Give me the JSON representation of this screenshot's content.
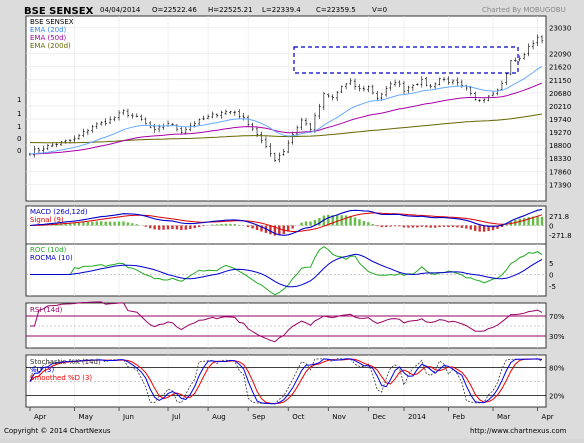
{
  "header": {
    "symbol": "BSE SENSEX",
    "date": "04/04/2014",
    "open": "O=22522.46",
    "high": "H=22525.21",
    "low": "L=22339.4",
    "close": "C=22359.5",
    "volume": "V=0",
    "credit": "Charted By MOBUGOBU"
  },
  "footer": {
    "copyright": "Copyright © 2014 ChartNexus",
    "url": "http://www.chartnexus.com"
  },
  "colors": {
    "price": "#000000",
    "ema20": "#66aaff",
    "ema50": "#aa00aa",
    "ema200": "#666600",
    "macd": "#0000cc",
    "signal": "#dd0000",
    "hist_up": "#66bb44",
    "hist_down": "#cc3333",
    "roc": "#22aa22",
    "rocma": "#0000cc",
    "rsi": "#990066",
    "stoch_k": "#333333",
    "stoch_d": "#0000ee",
    "smoothed_d": "#ee0000",
    "box": "#0000cc"
  },
  "chart_data": [
    {
      "type": "candlestick",
      "panel": "price",
      "legend": [
        "BSE SENSEX",
        "EMA (20d)",
        "EMA (50d)",
        "EMA (200d)"
      ],
      "y_ticks": [
        "23030",
        "22090",
        "21620",
        "21150",
        "20680",
        "20210",
        "19740",
        "19270",
        "18800",
        "18330",
        "17860",
        "17390"
      ],
      "y_range": [
        16900,
        23300
      ],
      "left_labels": [
        "1",
        "1",
        "1",
        "0",
        "0"
      ],
      "x_labels": [
        "Apr",
        "May",
        "Jun",
        "Jul",
        "Aug",
        "Sep",
        "Oct",
        "Nov",
        "Dec",
        "2014",
        "Feb",
        "Mar",
        "Apr"
      ],
      "close_anchors": [
        [
          0,
          18550
        ],
        [
          5,
          18800
        ],
        [
          10,
          19000
        ],
        [
          14,
          19480
        ],
        [
          18,
          19700
        ],
        [
          21,
          20000
        ],
        [
          25,
          19700
        ],
        [
          28,
          19300
        ],
        [
          31,
          19600
        ],
        [
          34,
          19300
        ],
        [
          37,
          19600
        ],
        [
          40,
          19800
        ],
        [
          43,
          20000
        ],
        [
          46,
          20000
        ],
        [
          49,
          19600
        ],
        [
          51,
          19200
        ],
        [
          53,
          18700
        ],
        [
          55,
          18300
        ],
        [
          57,
          18600
        ],
        [
          59,
          19200
        ],
        [
          61,
          19700
        ],
        [
          63,
          19400
        ],
        [
          64,
          19800
        ],
        [
          66,
          20600
        ],
        [
          68,
          20500
        ],
        [
          70,
          20900
        ],
        [
          72,
          21050
        ],
        [
          74,
          20800
        ],
        [
          76,
          20900
        ],
        [
          78,
          20500
        ],
        [
          80,
          20800
        ],
        [
          82,
          21100
        ],
        [
          84,
          20800
        ],
        [
          86,
          21000
        ],
        [
          88,
          21100
        ],
        [
          90,
          20900
        ],
        [
          92,
          21200
        ],
        [
          94,
          21100
        ],
        [
          96,
          21000
        ],
        [
          98,
          20800
        ],
        [
          100,
          20400
        ],
        [
          102,
          20500
        ],
        [
          104,
          20700
        ],
        [
          106,
          21000
        ],
        [
          108,
          21800
        ],
        [
          110,
          21900
        ],
        [
          112,
          22300
        ],
        [
          114,
          22700
        ],
        [
          115,
          22500
        ]
      ]
    },
    {
      "type": "line",
      "panel": "macd",
      "legend": [
        "MACD (26d,12d)",
        "Signal (9)"
      ],
      "y_ticks": [
        "271.8",
        "0",
        "-271.8"
      ],
      "y_range": [
        -450,
        450
      ]
    },
    {
      "type": "line",
      "panel": "roc",
      "legend": [
        "ROC (10d)",
        "ROCMA (10)"
      ],
      "y_ticks": [
        "5",
        "0",
        "-5"
      ],
      "y_range": [
        -8,
        8
      ]
    },
    {
      "type": "line",
      "panel": "rsi",
      "legend": [
        "RSI (14d)"
      ],
      "y_ticks": [
        "70%",
        "30%"
      ],
      "levels": [
        70,
        50,
        30
      ],
      "y_range": [
        10,
        90
      ]
    },
    {
      "type": "line",
      "panel": "stochastic",
      "legend": [
        "Stochastic %K (14d)",
        "%D (3)",
        "Smoothed %D (3)"
      ],
      "y_ticks": [
        "80%",
        "20%"
      ],
      "levels": [
        80,
        50,
        20
      ],
      "y_range": [
        0,
        100
      ]
    }
  ]
}
